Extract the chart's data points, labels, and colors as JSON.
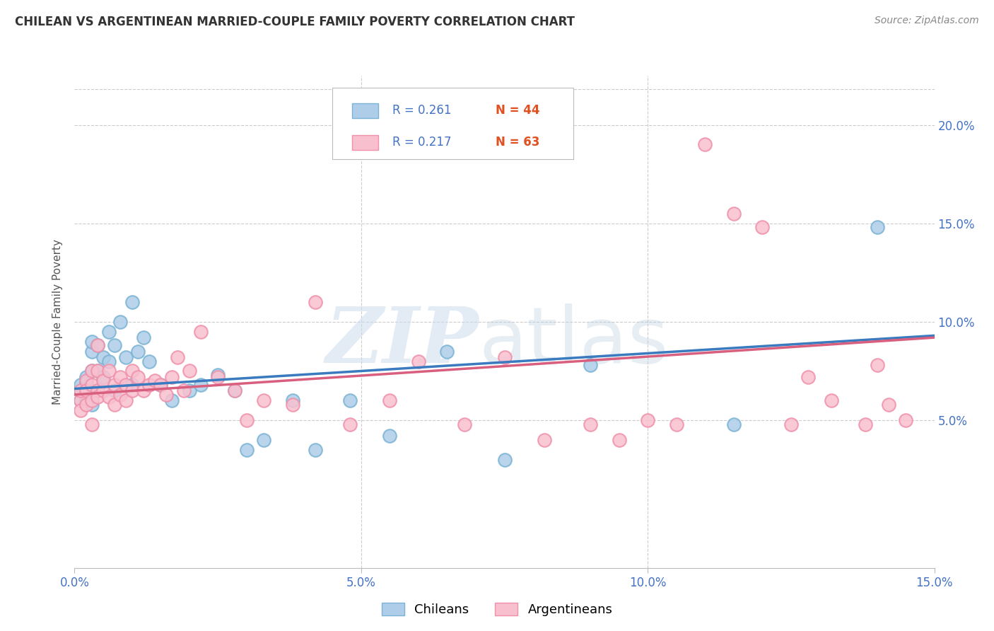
{
  "title": "CHILEAN VS ARGENTINEAN MARRIED-COUPLE FAMILY POVERTY CORRELATION CHART",
  "source": "Source: ZipAtlas.com",
  "ylabel_label": "Married-Couple Family Poverty",
  "xlim": [
    0.0,
    0.15
  ],
  "ylim": [
    -0.025,
    0.225
  ],
  "yticks": [
    0.05,
    0.1,
    0.15,
    0.2
  ],
  "xticks": [
    0.0,
    0.05,
    0.1,
    0.15
  ],
  "chilean_fill_color": "#aecde8",
  "chilean_edge_color": "#7ab3d4",
  "argentinean_fill_color": "#f8c0cf",
  "argentinean_edge_color": "#f090aa",
  "chilean_line_color": "#3a7abf",
  "argentinean_line_color": "#d95f7f",
  "R_color": "#4472c4",
  "N_color": "#e05020",
  "R_chilean": 0.261,
  "N_chilean": 44,
  "R_argentinean": 0.217,
  "N_argentinean": 63,
  "legend_label_1": "Chileans",
  "legend_label_2": "Argentineans",
  "background_color": "#ffffff",
  "chileans_x": [
    0.001,
    0.001,
    0.001,
    0.002,
    0.002,
    0.002,
    0.002,
    0.003,
    0.003,
    0.003,
    0.003,
    0.004,
    0.004,
    0.004,
    0.005,
    0.005,
    0.006,
    0.006,
    0.007,
    0.007,
    0.008,
    0.009,
    0.01,
    0.01,
    0.011,
    0.012,
    0.013,
    0.015,
    0.017,
    0.02,
    0.022,
    0.025,
    0.028,
    0.03,
    0.033,
    0.038,
    0.042,
    0.048,
    0.055,
    0.065,
    0.075,
    0.09,
    0.115,
    0.14
  ],
  "chileans_y": [
    0.065,
    0.068,
    0.06,
    0.063,
    0.069,
    0.072,
    0.06,
    0.058,
    0.075,
    0.085,
    0.09,
    0.088,
    0.065,
    0.075,
    0.082,
    0.072,
    0.095,
    0.08,
    0.088,
    0.065,
    0.1,
    0.082,
    0.11,
    0.068,
    0.085,
    0.092,
    0.08,
    0.068,
    0.06,
    0.065,
    0.068,
    0.073,
    0.065,
    0.035,
    0.04,
    0.06,
    0.035,
    0.06,
    0.042,
    0.085,
    0.03,
    0.078,
    0.048,
    0.148
  ],
  "argentineans_x": [
    0.001,
    0.001,
    0.001,
    0.002,
    0.002,
    0.002,
    0.003,
    0.003,
    0.003,
    0.003,
    0.004,
    0.004,
    0.004,
    0.004,
    0.005,
    0.005,
    0.006,
    0.006,
    0.007,
    0.007,
    0.008,
    0.008,
    0.009,
    0.009,
    0.01,
    0.01,
    0.011,
    0.012,
    0.013,
    0.014,
    0.015,
    0.016,
    0.017,
    0.018,
    0.019,
    0.02,
    0.022,
    0.025,
    0.028,
    0.03,
    0.033,
    0.038,
    0.042,
    0.048,
    0.055,
    0.06,
    0.068,
    0.075,
    0.082,
    0.09,
    0.095,
    0.1,
    0.105,
    0.11,
    0.115,
    0.12,
    0.125,
    0.128,
    0.132,
    0.138,
    0.14,
    0.142,
    0.145
  ],
  "argentineans_y": [
    0.06,
    0.055,
    0.065,
    0.058,
    0.07,
    0.065,
    0.048,
    0.068,
    0.075,
    0.06,
    0.088,
    0.065,
    0.062,
    0.075,
    0.065,
    0.07,
    0.062,
    0.075,
    0.058,
    0.068,
    0.072,
    0.063,
    0.068,
    0.06,
    0.075,
    0.065,
    0.072,
    0.065,
    0.068,
    0.07,
    0.068,
    0.063,
    0.072,
    0.082,
    0.065,
    0.075,
    0.095,
    0.072,
    0.065,
    0.05,
    0.06,
    0.058,
    0.11,
    0.048,
    0.06,
    0.08,
    0.048,
    0.082,
    0.04,
    0.048,
    0.04,
    0.05,
    0.048,
    0.19,
    0.155,
    0.148,
    0.048,
    0.072,
    0.06,
    0.048,
    0.078,
    0.058,
    0.05
  ],
  "trendline_x_start": 0.0,
  "trendline_x_end": 0.15,
  "ch_trend_y_start": 0.066,
  "ch_trend_y_end": 0.093,
  "ar_trend_y_start": 0.063,
  "ar_trend_y_end": 0.092
}
